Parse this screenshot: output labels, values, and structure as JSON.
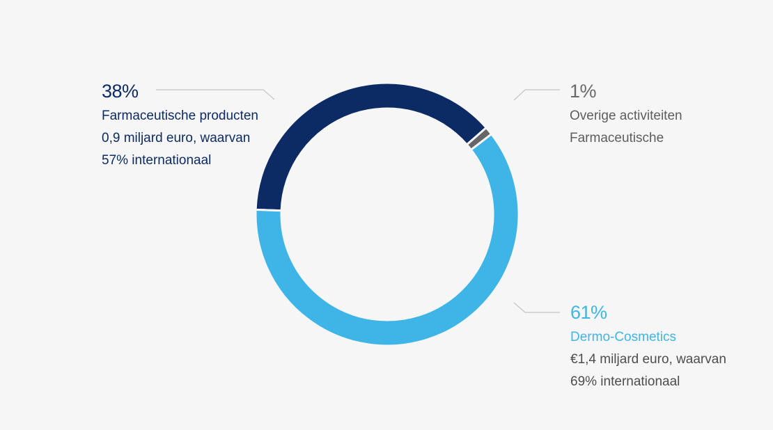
{
  "chart_data": {
    "type": "pie",
    "variant": "donut",
    "slices": [
      {
        "name": "Farmaceutische producten",
        "value": 38,
        "color": "#0c2b64"
      },
      {
        "name": "Overige activiteiten Farmaceutische",
        "value": 1,
        "color": "#666666"
      },
      {
        "name": "Dermo-Cosmetics",
        "value": 61,
        "color": "#3fb5e7"
      }
    ],
    "legend": "callouts"
  },
  "labels": {
    "pharma": {
      "percent": "38%",
      "lines": [
        "Farmaceutische producten",
        "0,9 miljard euro, waarvan",
        "57% internationaal"
      ]
    },
    "other": {
      "percent": "1%",
      "lines": [
        "Overige activiteiten",
        "Farmaceutische"
      ]
    },
    "dermo": {
      "percent": "61%",
      "lines": [
        "Dermo-Cosmetics",
        "€1,4 miljard euro, waarvan",
        "69% internationaal"
      ]
    }
  }
}
